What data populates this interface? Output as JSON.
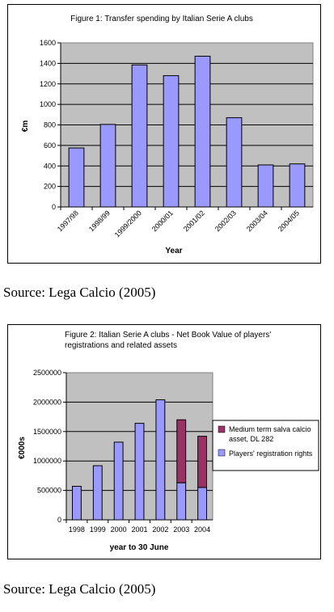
{
  "figures": [
    {
      "source": "Source: Lega Calcio (2005)",
      "chart_data": {
        "type": "bar",
        "title": "Figure 1: Transfer spending by Italian Serie A clubs",
        "xlabel": "Year",
        "ylabel": "€m",
        "ylim": [
          0,
          1600
        ],
        "yticks": [
          0,
          200,
          400,
          600,
          800,
          1000,
          1200,
          1400,
          1600
        ],
        "categories": [
          "1997/98",
          "1998/99",
          "1999/2000",
          "2000/01",
          "2001/02",
          "2002/03",
          "2003/04",
          "2004/05"
        ],
        "values": [
          575,
          805,
          1385,
          1280,
          1470,
          870,
          410,
          420
        ],
        "grid": true,
        "colors": {
          "bar": "#9999ff",
          "plot_bg": "#c0c0c0"
        }
      }
    },
    {
      "source": "Source: Lega Calcio (2005)",
      "chart_data": {
        "type": "bar",
        "stacked": true,
        "title": "Figure 2: Italian Serie A clubs - Net Book Value of players' registrations and related assets",
        "title_lines": [
          "Figure 2: Italian Serie A clubs - Net Book Value of players'",
          "registrations and related assets"
        ],
        "xlabel": "year to 30 June",
        "ylabel": "€000s",
        "ylim": [
          0,
          2500000
        ],
        "yticks": [
          0,
          500000,
          1000000,
          1500000,
          2000000,
          2500000
        ],
        "categories": [
          "1998",
          "1999",
          "2000",
          "2001",
          "2002",
          "2003",
          "2004"
        ],
        "series": [
          {
            "name": "Players' registration rights",
            "values": [
              570000,
              920000,
              1320000,
              1640000,
              2040000,
              630000,
              550000
            ]
          },
          {
            "name": "Medium term salva calcio asset, DL 282",
            "name_lines": [
              "Medium term salva calcio",
              "asset, DL 282"
            ],
            "values": [
              0,
              0,
              0,
              0,
              0,
              1070000,
              870000
            ]
          }
        ],
        "legend": "right",
        "grid": true,
        "colors": {
          "series": [
            "#9999ff",
            "#993366"
          ],
          "plot_bg": "#c0c0c0"
        }
      }
    }
  ]
}
